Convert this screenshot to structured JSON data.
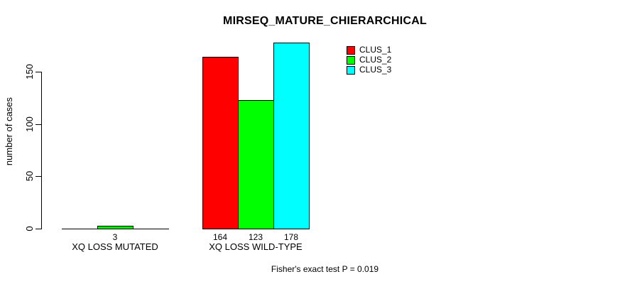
{
  "chart_data": {
    "type": "bar",
    "grouped": true,
    "title": "MIRSEQ_MATURE_CHIERARCHICAL",
    "ylabel": "number of cases",
    "xlabel": "",
    "categories": [
      "XQ LOSS MUTATED",
      "XQ LOSS WILD-TYPE"
    ],
    "series": [
      {
        "name": "CLUS_1",
        "color": "#FF0000",
        "values": [
          0,
          164
        ]
      },
      {
        "name": "CLUS_2",
        "color": "#00FF00",
        "values": [
          3,
          123
        ]
      },
      {
        "name": "CLUS_3",
        "color": "#00FFFF",
        "values": [
          0,
          178
        ]
      }
    ],
    "yticks": [
      0,
      50,
      100,
      150
    ],
    "ylim": [
      0,
      186
    ],
    "grid": false,
    "bar_border_color": "#000000",
    "value_labels_shown": true,
    "visible_value_labels": [
      "3",
      "164",
      "123",
      "178"
    ],
    "legend": {
      "position": "top-right",
      "entries": [
        "CLUS_1",
        "CLUS_2",
        "CLUS_3"
      ],
      "colors": [
        "#FF0000",
        "#00FF00",
        "#00FFFF"
      ]
    },
    "annotation": "Fisher's exact test P = 0.019"
  }
}
